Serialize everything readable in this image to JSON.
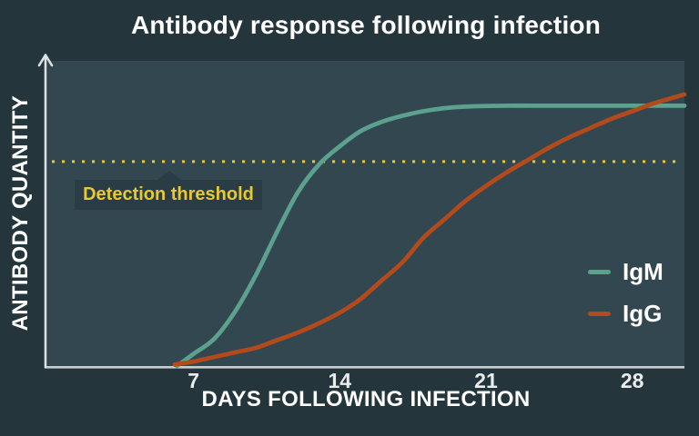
{
  "title": "Antibody response following infection",
  "colors": {
    "background": "#24353c",
    "plot_background": "#334750",
    "y_axis": "#dde2e4",
    "x_axis": "#c6cccf",
    "text": "#ffffff",
    "threshold_label_bg": "#2a3c44",
    "threshold_label_text": "#e8c930"
  },
  "chart_data": {
    "type": "line",
    "title": "Antibody response following infection",
    "xlabel": "DAYS FOLLOWING INFECTION",
    "ylabel": "ANTIBODY QUANTITY",
    "xlim": [
      0,
      30.5
    ],
    "ylim": [
      0,
      100
    ],
    "x_ticks": [
      7,
      14,
      21,
      28
    ],
    "y_ticks": [],
    "grid": false,
    "legend_position": "inside-right",
    "threshold": {
      "label": "Detection threshold",
      "value": 67,
      "color": "#e2c72e",
      "style": "dotted"
    },
    "series": [
      {
        "name": "IgM",
        "color": "#5ca08e",
        "points": [
          [
            6.2,
            0
          ],
          [
            7,
            4
          ],
          [
            8,
            9
          ],
          [
            9,
            18
          ],
          [
            10,
            30
          ],
          [
            11,
            44
          ],
          [
            12,
            57
          ],
          [
            13,
            66
          ],
          [
            14,
            72
          ],
          [
            15,
            77
          ],
          [
            16,
            80
          ],
          [
            17,
            82
          ],
          [
            18,
            83.5
          ],
          [
            19,
            84.5
          ],
          [
            20,
            85
          ],
          [
            22,
            85.3
          ],
          [
            24,
            85.3
          ],
          [
            26,
            85.3
          ],
          [
            28,
            85.3
          ],
          [
            30.5,
            85.3
          ]
        ]
      },
      {
        "name": "IgG",
        "color": "#b34a1b",
        "points": [
          [
            6.1,
            0.5
          ],
          [
            7,
            1.5
          ],
          [
            8,
            3
          ],
          [
            9,
            4.5
          ],
          [
            10,
            6
          ],
          [
            11,
            8.5
          ],
          [
            12,
            11
          ],
          [
            13,
            14
          ],
          [
            14,
            17.5
          ],
          [
            15,
            22
          ],
          [
            16,
            28
          ],
          [
            17,
            34
          ],
          [
            18,
            42
          ],
          [
            19,
            48
          ],
          [
            20,
            54
          ],
          [
            21,
            59
          ],
          [
            22,
            63.5
          ],
          [
            23,
            67.5
          ],
          [
            24,
            71.5
          ],
          [
            25,
            75
          ],
          [
            26,
            78
          ],
          [
            27,
            81
          ],
          [
            28,
            83.5
          ],
          [
            29,
            86
          ],
          [
            30.5,
            89
          ]
        ]
      }
    ]
  }
}
